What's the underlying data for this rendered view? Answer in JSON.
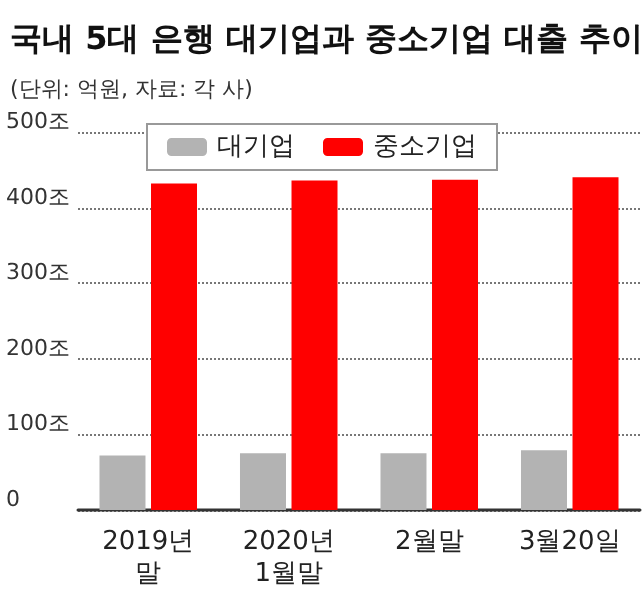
{
  "chart_data": {
    "type": "bar",
    "title": "국내 5대 은행 대기업과 중소기업 대출 추이",
    "subtitle": "(단위: 억원, 자료: 각 사)",
    "categories": [
      "2019년\n말",
      "2020년\n1월말",
      "2월말",
      "3월20일"
    ],
    "series": [
      {
        "name": "대기업",
        "color": "#b3b3b3",
        "values": [
          72,
          75,
          75,
          79
        ]
      },
      {
        "name": "중소기업",
        "color": "#ff0000",
        "values": [
          432,
          436,
          437,
          440
        ]
      }
    ],
    "ylim": [
      0,
      500
    ],
    "yticks": [
      {
        "value": 0,
        "label": "0"
      },
      {
        "value": 100,
        "label": "100조"
      },
      {
        "value": 200,
        "label": "200조"
      },
      {
        "value": 300,
        "label": "300조"
      },
      {
        "value": 400,
        "label": "400조"
      },
      {
        "value": 500,
        "label": "500조"
      }
    ],
    "grid": "y",
    "legend": "top"
  }
}
